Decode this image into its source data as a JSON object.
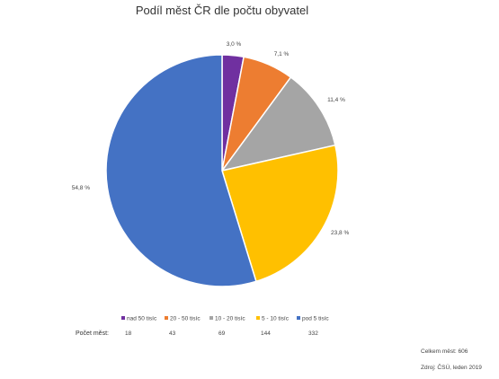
{
  "chart_data": {
    "type": "pie",
    "title": "Podíl měst ČR dle počtu obyvatel",
    "categories": [
      "nad 50 tisíc",
      "20 - 50 tisíc",
      "10 - 20 tisíc",
      "5 - 10 tisíc",
      "pod 5 tisíc"
    ],
    "values": [
      3.0,
      7.1,
      11.4,
      23.8,
      54.8
    ],
    "value_labels": [
      "3,0 %",
      "7,1 %",
      "11,4 %",
      "23,8 %",
      "54,8 %"
    ],
    "counts": [
      18,
      43,
      69,
      144,
      332
    ],
    "colors": [
      "#7030A0",
      "#ED7D31",
      "#A5A5A5",
      "#FFC000",
      "#4472C4"
    ],
    "legend_placement": "bottom",
    "counts_row_label": "Počet měst:"
  },
  "footer": {
    "total": "Celkem měst: 606",
    "source": "Zdroj: ČSÚ, leden 2019"
  }
}
